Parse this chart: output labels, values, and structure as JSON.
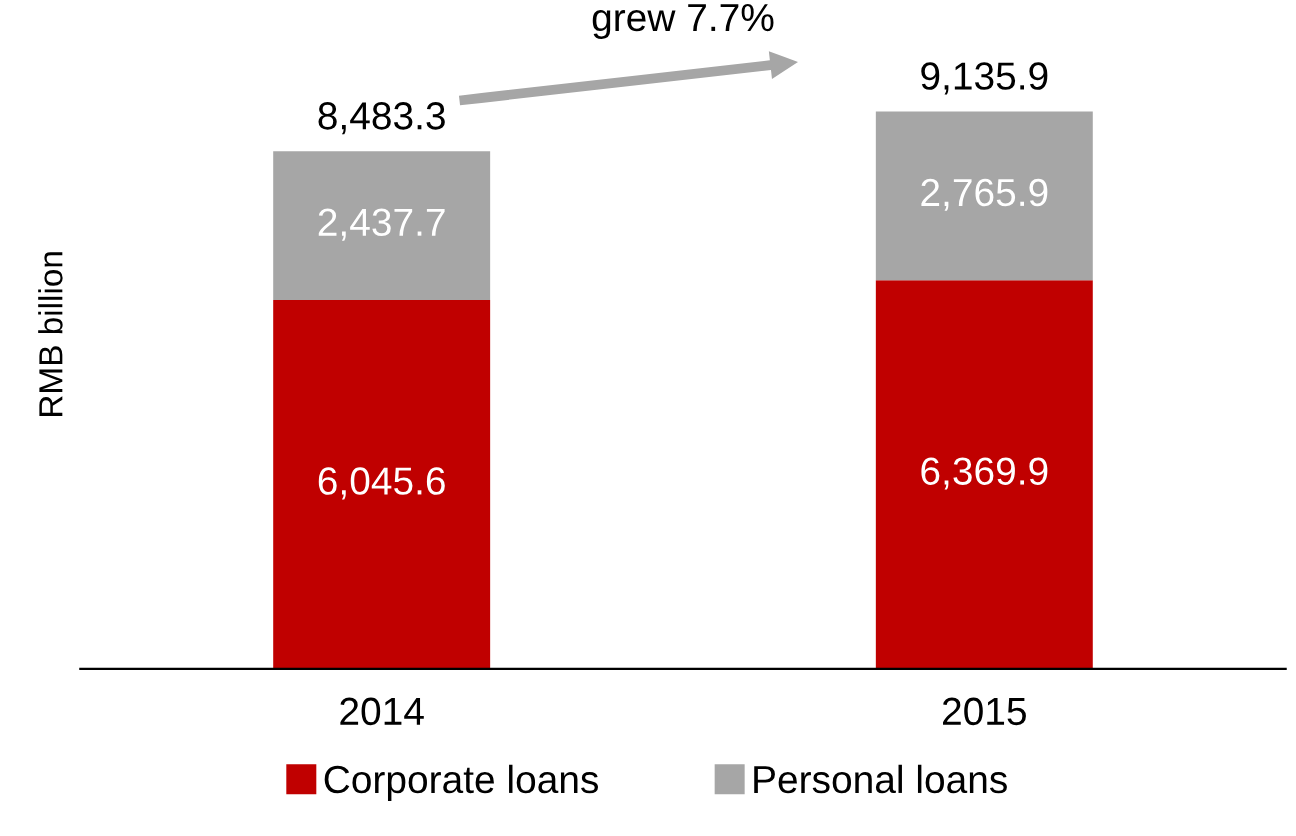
{
  "chart_data": {
    "type": "bar",
    "stacked": true,
    "ylabel": "RMB billion",
    "categories": [
      "2014",
      "2015"
    ],
    "series": [
      {
        "name": "Corporate loans",
        "color": "#c00000",
        "values": [
          6045.6,
          6369.9
        ],
        "value_labels": [
          "6,045.6",
          "6,369.9"
        ]
      },
      {
        "name": "Personal loans",
        "color": "#a6a6a6",
        "values": [
          2437.7,
          2765.9
        ],
        "value_labels": [
          "2,437.7",
          "2,765.9"
        ]
      }
    ],
    "totals": [
      "8,483.3",
      "9,135.9"
    ],
    "annotations": [
      "grew 7.7%"
    ],
    "legend": "bottom",
    "grid": false
  }
}
